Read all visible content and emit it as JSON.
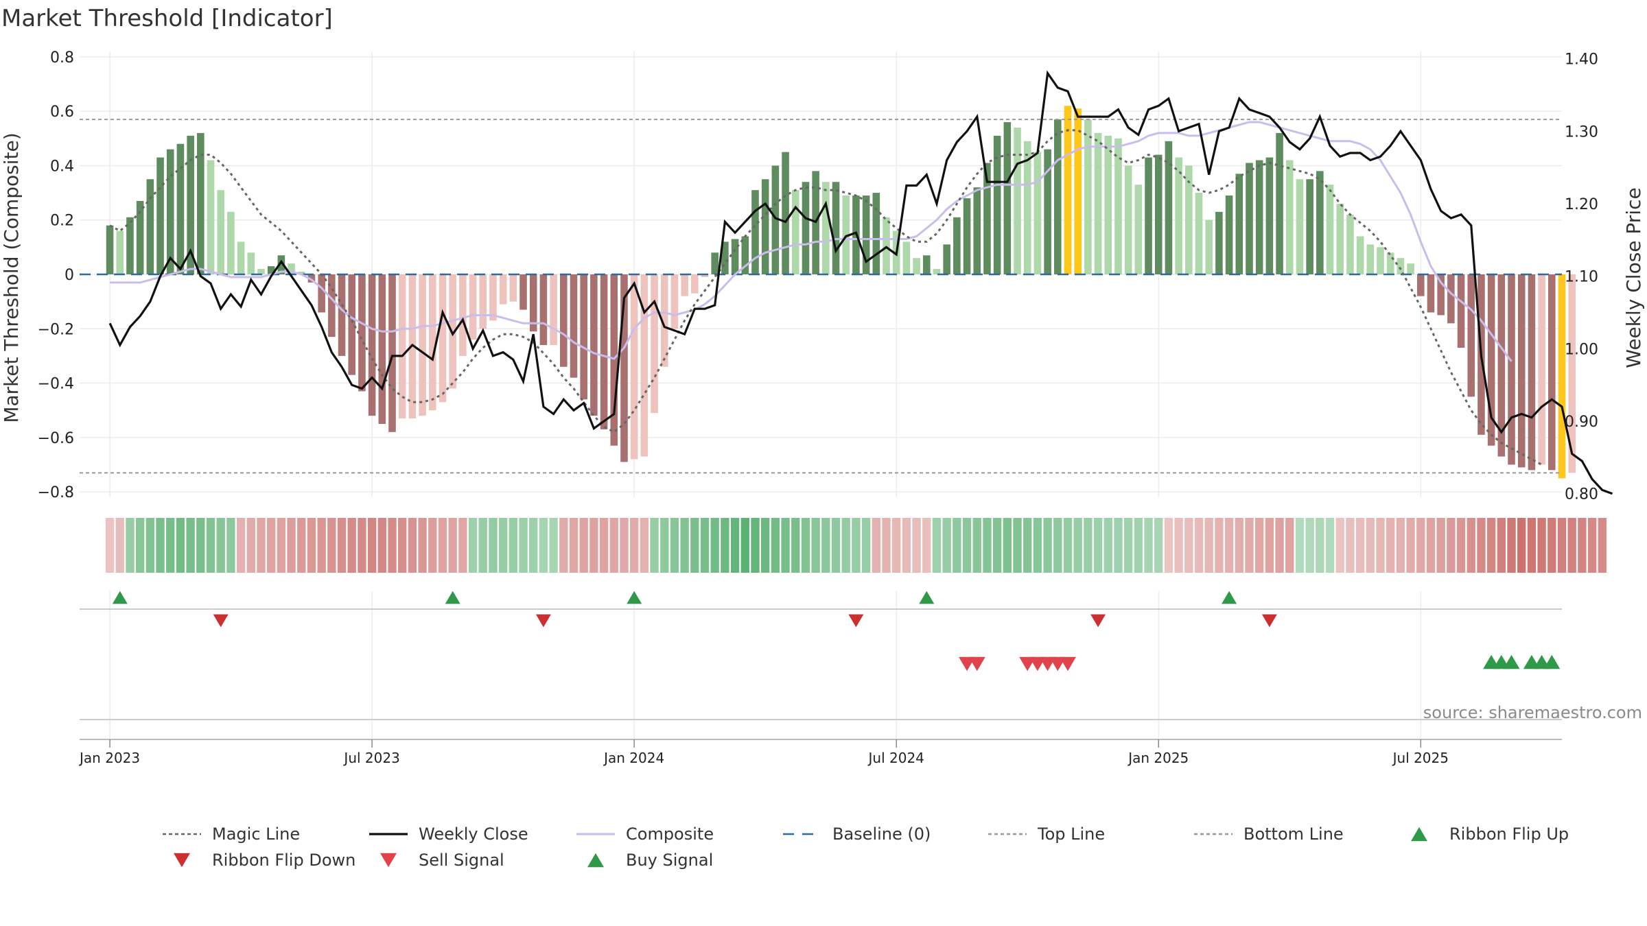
{
  "chart_data": {
    "type": "bar",
    "title": "Market Threshold [Indicator]",
    "ylabel_left": "Market Threshold (Composite)",
    "ylabel_right": "Weekly Close Price",
    "source": "source: sharemaestro.com",
    "left_ylim": [
      -0.82,
      0.82
    ],
    "right_ylim": [
      0.795,
      1.41
    ],
    "left_ticks": [
      {
        "v": 0.8,
        "label": "0.8"
      },
      {
        "v": 0.6,
        "label": "0.6"
      },
      {
        "v": 0.4,
        "label": "0.4"
      },
      {
        "v": 0.2,
        "label": "0.2"
      },
      {
        "v": 0,
        "label": "0"
      },
      {
        "v": -0.2,
        "label": "−0.2"
      },
      {
        "v": -0.4,
        "label": "−0.4"
      },
      {
        "v": -0.6,
        "label": "−0.6"
      },
      {
        "v": -0.8,
        "label": "−0.8"
      }
    ],
    "right_ticks": [
      {
        "v": 1.4,
        "label": "1.40"
      },
      {
        "v": 1.3,
        "label": "1.30"
      },
      {
        "v": 1.2,
        "label": "1.20"
      },
      {
        "v": 1.1,
        "label": "1.10"
      },
      {
        "v": 1.0,
        "label": "1.00"
      },
      {
        "v": 0.9,
        "label": "0.90"
      },
      {
        "v": 0.8,
        "label": "0.80"
      }
    ],
    "x_range": [
      -3,
      144
    ],
    "x_ticks": [
      {
        "w": 0,
        "label": "Jan 2023"
      },
      {
        "w": 26,
        "label": "Jul 2023"
      },
      {
        "w": 52,
        "label": "Jan 2024"
      },
      {
        "w": 78,
        "label": "Jul 2024"
      },
      {
        "w": 104,
        "label": "Jan 2025"
      },
      {
        "w": 130,
        "label": "Jul 2025"
      }
    ],
    "top_line": 0.57,
    "bottom_line": -0.73,
    "baseline": 0,
    "composite_values": [
      0.18,
      0.16,
      0.21,
      0.27,
      0.35,
      0.43,
      0.46,
      0.48,
      0.51,
      0.52,
      0.42,
      0.31,
      0.23,
      0.12,
      0.08,
      0.02,
      0.03,
      0.07,
      0.04,
      0.01,
      -0.03,
      -0.14,
      -0.23,
      -0.3,
      -0.37,
      -0.43,
      -0.52,
      -0.55,
      -0.58,
      -0.53,
      -0.53,
      -0.52,
      -0.5,
      -0.47,
      -0.42,
      -0.3,
      -0.24,
      -0.2,
      -0.17,
      -0.11,
      -0.1,
      -0.13,
      -0.21,
      -0.26,
      -0.26,
      -0.34,
      -0.38,
      -0.46,
      -0.52,
      -0.57,
      -0.63,
      -0.69,
      -0.68,
      -0.67,
      -0.51,
      -0.34,
      -0.2,
      -0.08,
      -0.07,
      -0.01,
      0.08,
      0.12,
      0.13,
      0.14,
      0.31,
      0.35,
      0.4,
      0.45,
      0.31,
      0.34,
      0.38,
      0.34,
      0.34,
      0.29,
      0.29,
      0.29,
      0.3,
      0.21,
      0.16,
      0.12,
      0.06,
      0.07,
      0.02,
      0.11,
      0.21,
      0.28,
      0.32,
      0.41,
      0.51,
      0.56,
      0.54,
      0.49,
      0.45,
      0.46,
      0.57,
      0.62,
      0.61,
      0.57,
      0.52,
      0.51,
      0.5,
      0.4,
      0.33,
      0.43,
      0.44,
      0.49,
      0.43,
      0.4,
      0.3,
      0.2,
      0.23,
      0.29,
      0.37,
      0.41,
      0.42,
      0.43,
      0.52,
      0.42,
      0.35,
      0.35,
      0.38,
      0.33,
      0.26,
      0.22,
      0.14,
      0.11,
      0.1,
      0.08,
      0.06,
      0.04,
      -0.08,
      -0.14,
      -0.15,
      -0.18,
      -0.27,
      -0.45,
      -0.59,
      -0.63,
      -0.67,
      -0.7,
      -0.71,
      -0.72,
      -0.7,
      -0.72,
      -0.75,
      -0.73
    ],
    "magic_line": [
      0.18,
      0.16,
      0.19,
      0.23,
      0.28,
      0.32,
      0.36,
      0.39,
      0.42,
      0.44,
      0.44,
      0.41,
      0.37,
      0.32,
      0.27,
      0.22,
      0.19,
      0.16,
      0.12,
      0.08,
      0.04,
      0.0,
      -0.05,
      -0.11,
      -0.17,
      -0.24,
      -0.31,
      -0.37,
      -0.42,
      -0.45,
      -0.47,
      -0.47,
      -0.46,
      -0.44,
      -0.4,
      -0.36,
      -0.31,
      -0.27,
      -0.24,
      -0.22,
      -0.22,
      -0.23,
      -0.25,
      -0.29,
      -0.33,
      -0.38,
      -0.42,
      -0.47,
      -0.52,
      -0.56,
      -0.58,
      -0.55,
      -0.5,
      -0.44,
      -0.38,
      -0.31,
      -0.24,
      -0.17,
      -0.11,
      -0.06,
      -0.01,
      0.04,
      0.09,
      0.14,
      0.18,
      0.22,
      0.26,
      0.29,
      0.31,
      0.32,
      0.32,
      0.31,
      0.31,
      0.3,
      0.29,
      0.27,
      0.24,
      0.2,
      0.17,
      0.14,
      0.12,
      0.12,
      0.15,
      0.2,
      0.26,
      0.32,
      0.37,
      0.41,
      0.43,
      0.44,
      0.44,
      0.44,
      0.45,
      0.49,
      0.52,
      0.53,
      0.53,
      0.51,
      0.49,
      0.46,
      0.43,
      0.41,
      0.42,
      0.44,
      0.43,
      0.41,
      0.38,
      0.34,
      0.31,
      0.3,
      0.31,
      0.33,
      0.36,
      0.38,
      0.4,
      0.41,
      0.4,
      0.39,
      0.38,
      0.37,
      0.35,
      0.31,
      0.26,
      0.22,
      0.19,
      0.16,
      0.12,
      0.07,
      0.02,
      -0.05,
      -0.12,
      -0.2,
      -0.28,
      -0.36,
      -0.43,
      -0.5,
      -0.55,
      -0.59,
      -0.62,
      -0.64,
      -0.66,
      -0.68,
      -0.7
    ],
    "composite_line": [
      -0.03,
      -0.03,
      -0.03,
      -0.03,
      -0.02,
      -0.01,
      0.0,
      0.01,
      0.02,
      0.02,
      0.01,
      0.0,
      -0.01,
      -0.01,
      -0.01,
      -0.01,
      0.0,
      0.01,
      0.01,
      0.0,
      -0.02,
      -0.05,
      -0.09,
      -0.13,
      -0.16,
      -0.18,
      -0.2,
      -0.21,
      -0.21,
      -0.2,
      -0.2,
      -0.19,
      -0.19,
      -0.18,
      -0.17,
      -0.16,
      -0.15,
      -0.15,
      -0.15,
      -0.16,
      -0.17,
      -0.18,
      -0.18,
      -0.18,
      -0.2,
      -0.22,
      -0.25,
      -0.27,
      -0.29,
      -0.3,
      -0.31,
      -0.27,
      -0.2,
      -0.16,
      -0.14,
      -0.14,
      -0.15,
      -0.14,
      -0.13,
      -0.11,
      -0.08,
      -0.04,
      0.0,
      0.03,
      0.06,
      0.08,
      0.09,
      0.1,
      0.11,
      0.11,
      0.12,
      0.12,
      0.13,
      0.13,
      0.13,
      0.13,
      0.13,
      0.13,
      0.13,
      0.13,
      0.14,
      0.17,
      0.2,
      0.24,
      0.27,
      0.29,
      0.31,
      0.32,
      0.33,
      0.33,
      0.33,
      0.33,
      0.34,
      0.38,
      0.42,
      0.44,
      0.46,
      0.47,
      0.47,
      0.47,
      0.47,
      0.48,
      0.49,
      0.51,
      0.52,
      0.52,
      0.52,
      0.51,
      0.51,
      0.52,
      0.53,
      0.54,
      0.55,
      0.56,
      0.56,
      0.55,
      0.54,
      0.53,
      0.52,
      0.51,
      0.5,
      0.49,
      0.49,
      0.49,
      0.48,
      0.46,
      0.42,
      0.36,
      0.3,
      0.22,
      0.12,
      0.03,
      -0.03,
      -0.07,
      -0.1,
      -0.13,
      -0.17,
      -0.22,
      -0.27,
      -0.32
    ],
    "weekly_close": [
      1.035,
      1.005,
      1.03,
      1.045,
      1.065,
      1.1,
      1.125,
      1.11,
      1.135,
      1.1,
      1.09,
      1.055,
      1.075,
      1.058,
      1.095,
      1.075,
      1.1,
      1.12,
      1.1,
      1.08,
      1.06,
      1.03,
      0.995,
      0.975,
      0.95,
      0.945,
      0.96,
      0.945,
      0.99,
      0.99,
      1.005,
      0.995,
      0.985,
      1.05,
      1.02,
      1.04,
      1.0,
      1.025,
      0.99,
      0.995,
      0.985,
      0.955,
      1.02,
      0.92,
      0.91,
      0.93,
      0.915,
      0.925,
      0.89,
      0.9,
      0.91,
      1.07,
      1.09,
      1.05,
      1.065,
      1.03,
      1.025,
      1.02,
      1.055,
      1.055,
      1.06,
      1.175,
      1.16,
      1.175,
      1.19,
      1.2,
      1.18,
      1.175,
      1.195,
      1.18,
      1.175,
      1.2,
      1.135,
      1.155,
      1.16,
      1.12,
      1.13,
      1.14,
      1.13,
      1.225,
      1.225,
      1.24,
      1.2,
      1.26,
      1.285,
      1.3,
      1.32,
      1.23,
      1.23,
      1.23,
      1.255,
      1.26,
      1.27,
      1.38,
      1.36,
      1.355,
      1.32,
      1.32,
      1.32,
      1.32,
      1.33,
      1.305,
      1.295,
      1.33,
      1.335,
      1.345,
      1.3,
      1.305,
      1.31,
      1.24,
      1.3,
      1.305,
      1.345,
      1.33,
      1.325,
      1.32,
      1.305,
      1.285,
      1.275,
      1.29,
      1.32,
      1.28,
      1.265,
      1.27,
      1.27,
      1.26,
      1.265,
      1.28,
      1.3,
      1.28,
      1.26,
      1.22,
      1.19,
      1.18,
      1.185,
      1.17,
      0.99,
      0.905,
      0.885,
      0.905,
      0.91,
      0.905,
      0.92,
      0.93,
      0.92,
      0.855,
      0.845,
      0.82,
      0.805,
      0.8
    ],
    "ribbon": [
      -0.15,
      -0.2,
      0.4,
      0.5,
      0.55,
      0.6,
      0.62,
      0.65,
      0.62,
      0.6,
      0.55,
      0.5,
      0.45,
      -0.3,
      -0.35,
      -0.38,
      -0.4,
      -0.42,
      -0.45,
      -0.48,
      -0.5,
      -0.52,
      -0.55,
      -0.58,
      -0.6,
      -0.62,
      -0.65,
      -0.63,
      -0.6,
      -0.58,
      -0.55,
      -0.5,
      -0.45,
      -0.42,
      -0.4,
      -0.38,
      0.35,
      0.4,
      0.42,
      0.4,
      0.38,
      0.36,
      0.34,
      0.3,
      0.28,
      -0.35,
      -0.38,
      -0.4,
      -0.42,
      -0.4,
      -0.38,
      -0.36,
      -0.35,
      -0.3,
      0.4,
      0.45,
      0.5,
      0.55,
      0.6,
      0.62,
      0.65,
      0.7,
      0.75,
      0.8,
      0.75,
      0.7,
      0.65,
      0.62,
      0.6,
      0.55,
      0.5,
      0.48,
      0.45,
      0.42,
      0.4,
      0.38,
      -0.3,
      -0.28,
      -0.25,
      -0.22,
      -0.2,
      -0.18,
      0.35,
      0.4,
      0.45,
      0.48,
      0.5,
      0.52,
      0.55,
      0.58,
      0.55,
      0.52,
      0.5,
      0.48,
      0.45,
      0.42,
      0.4,
      0.38,
      0.36,
      0.35,
      0.34,
      0.33,
      0.32,
      0.3,
      0.28,
      -0.15,
      -0.18,
      -0.2,
      -0.22,
      -0.25,
      -0.28,
      -0.3,
      -0.32,
      -0.35,
      -0.38,
      -0.4,
      -0.42,
      -0.4,
      0.2,
      0.22,
      0.25,
      0.22,
      -0.15,
      -0.18,
      -0.2,
      -0.22,
      -0.25,
      -0.28,
      -0.3,
      -0.33,
      -0.36,
      -0.4,
      -0.44,
      -0.48,
      -0.52,
      -0.56,
      -0.6,
      -0.65,
      -0.7,
      -0.75,
      -0.8,
      -0.78,
      -0.75,
      -0.72,
      -0.7,
      -0.68,
      -0.65,
      -0.62,
      -0.6
    ],
    "ribbon_flip_up_weeks": [
      1,
      34,
      52,
      81,
      111
    ],
    "ribbon_flip_down_weeks": [
      11,
      43,
      74,
      98,
      115
    ],
    "sell_signal_weeks": [
      85,
      86,
      91,
      92,
      93,
      94,
      95
    ],
    "buy_signal_weeks": [
      137,
      138,
      139,
      141,
      142,
      143
    ],
    "legend": [
      {
        "label": "Magic Line",
        "kind": "dotted",
        "color": "#666666"
      },
      {
        "label": "Weekly Close",
        "kind": "solid",
        "color": "#111111"
      },
      {
        "label": "Composite",
        "kind": "solid",
        "color": "#c9bdeb"
      },
      {
        "label": "Baseline (0)",
        "kind": "dashed",
        "color": "#2a6aa0"
      },
      {
        "label": "Top Line",
        "kind": "dotted",
        "color": "#999999"
      },
      {
        "label": "Bottom Line",
        "kind": "dotted",
        "color": "#999999"
      },
      {
        "label": "Ribbon Flip Up",
        "kind": "tri-up",
        "color": "#2e9947"
      },
      {
        "label": "Ribbon Flip Down",
        "kind": "tri-down",
        "color": "#cc2f2f"
      },
      {
        "label": "Sell Signal",
        "kind": "tri-down",
        "color": "#e0434b"
      },
      {
        "label": "Buy Signal",
        "kind": "tri-up",
        "color": "#2e9947"
      }
    ],
    "colors": {
      "pos_dark": "#5e8c5e",
      "pos_light": "#aed7aa",
      "neg_dark": "#a8716f",
      "neg_light": "#efc3bd",
      "yellow": "#ffc71a",
      "magic": "#666666",
      "weekly": "#111111",
      "composite": "#c9bdeb",
      "baseline": "#2a6aa0",
      "threshold": "#999999",
      "grid": "#ececec",
      "flip_up": "#2e9947",
      "flip_down": "#cc2f2f",
      "sell": "#e0434b",
      "buy": "#2e9947"
    },
    "grid": true,
    "legend_position": "bottom"
  }
}
